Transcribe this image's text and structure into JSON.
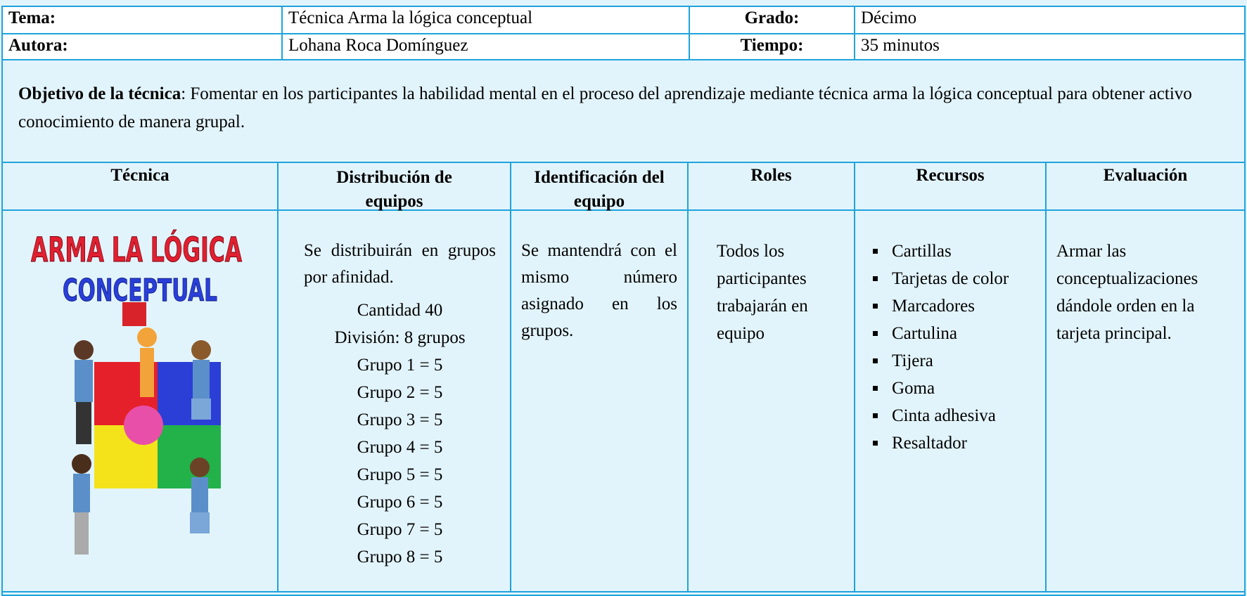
{
  "header": {
    "rows": [
      [
        "Tema:",
        "Técnica  Arma la lógica conceptual",
        "Grado:",
        "Décimo"
      ],
      [
        "Autora:",
        "Lohana Roca Domínguez",
        "Tiempo:",
        "35 minutos"
      ]
    ]
  },
  "objective": {
    "label": "Objetivo de la técnica",
    "text": ": Fomentar en los participantes la habilidad mental en el proceso del aprendizaje mediante técnica arma la lógica conceptual para obtener activo conocimiento de manera grupal."
  },
  "table": {
    "columns": [
      "Técnica",
      "Distribución  de equipos",
      "Identificación del equipo",
      "Roles",
      "Recursos",
      "Evaluación"
    ],
    "image_title": [
      "ARMA LA LÓGICA",
      "CONCEPTUAL"
    ],
    "distribution": {
      "text": "Se distribuirán en grupos por afinidad.",
      "lines": [
        "Cantidad 40",
        "División: 8 grupos",
        "Grupo  1 = 5",
        "Grupo  2 = 5",
        "Grupo  3 = 5",
        "Grupo  4 = 5",
        "Grupo  5 = 5",
        "Grupo  6 = 5",
        "Grupo  7 = 5",
        "Grupo  8 = 5"
      ]
    },
    "identification": "Se mantendrá con el mismo número asignado en los grupos.",
    "roles": "Todos los participantes trabajarán en equipo",
    "resources": [
      "Cartillas",
      "Tarjetas de color",
      "Marcadores",
      "Cartulina",
      "Tijera",
      "Goma",
      "Cinta adhesiva",
      "Resaltador"
    ],
    "evaluation": "Armar las conceptualizaciones dándole orden en la tarjeta principal."
  }
}
